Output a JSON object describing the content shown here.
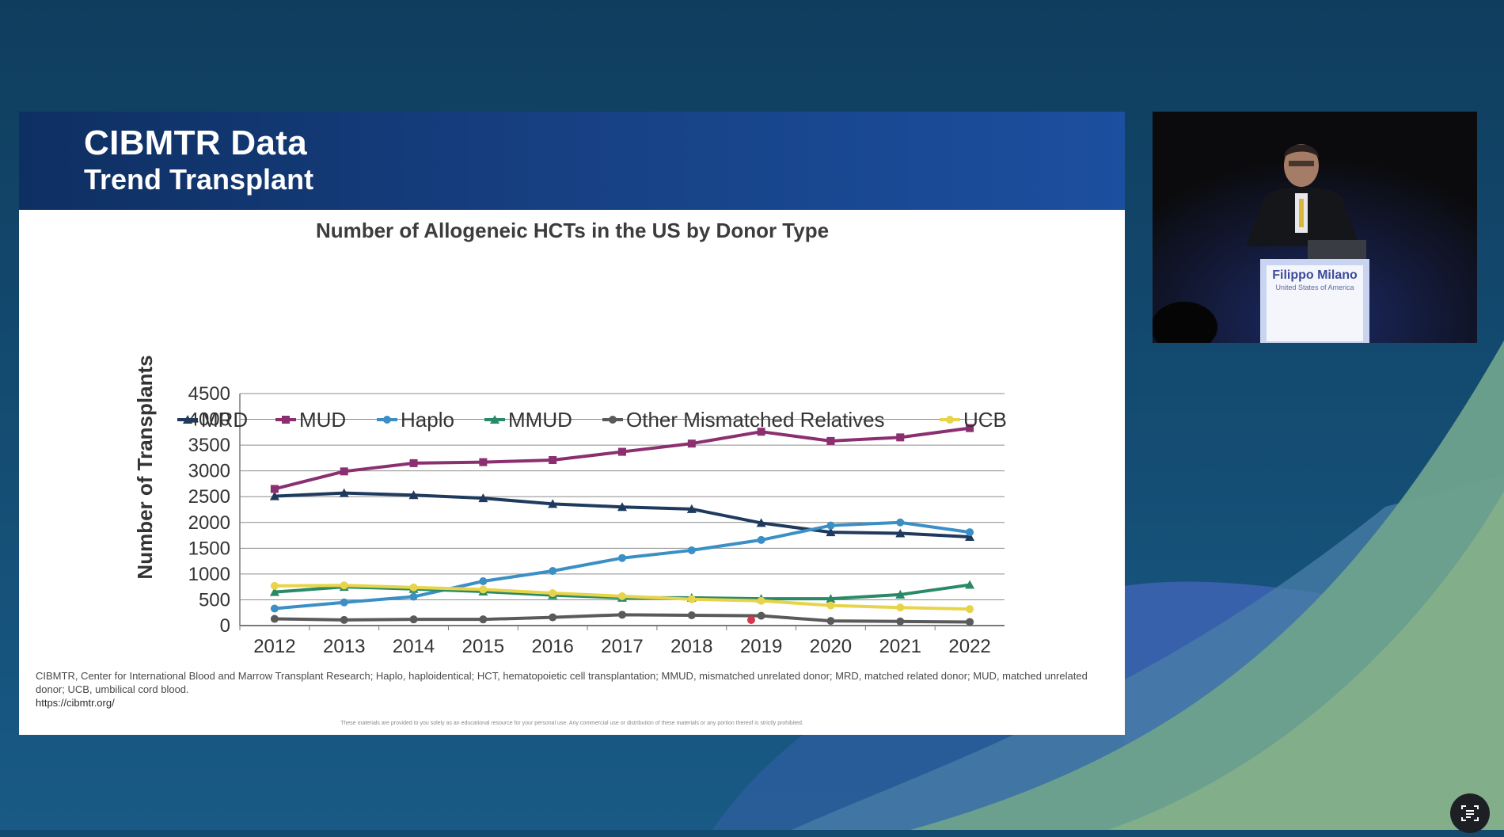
{
  "slide": {
    "title": "CIBMTR Data",
    "subtitle": "Trend Transplant",
    "footnote": "CIBMTR, Center for International Blood and Marrow Transplant Research; Haplo, haploidentical; HCT, hematopoietic cell transplantation; MMUD, mismatched unrelated donor; MRD, matched related donor; MUD, matched unrelated donor; UCB, umbilical cord blood.",
    "footnote_url": "https://cibmtr.org/",
    "disclaimer": "These materials are provided to you solely as an educational resource for your personal use. Any commercial use or distribution of these materials or any portion thereof is strictly prohibited."
  },
  "chart_data": {
    "type": "line",
    "title": "Number of Allogeneic HCTs in the US by Donor Type",
    "xlabel": "",
    "ylabel": "Number of Transplants",
    "ylim": [
      0,
      4500
    ],
    "yticks": [
      "0",
      "500",
      "1000",
      "1500",
      "2000",
      "2500",
      "3000",
      "3500",
      "4000",
      "4500"
    ],
    "grid": true,
    "legend_position": "top",
    "categories": [
      "2012",
      "2013",
      "2014",
      "2015",
      "2016",
      "2017",
      "2018",
      "2019",
      "2020",
      "2021",
      "2022"
    ],
    "series": [
      {
        "name": "MRD",
        "color": "#1f3a5c",
        "marker": "triangle",
        "values": [
          2510,
          2570,
          2530,
          2470,
          2360,
          2300,
          2260,
          1990,
          1810,
          1790,
          1720
        ]
      },
      {
        "name": "MUD",
        "color": "#8b2f70",
        "marker": "square",
        "values": [
          2650,
          2990,
          3150,
          3170,
          3210,
          3370,
          3530,
          3760,
          3580,
          3650,
          3830
        ]
      },
      {
        "name": "Haplo",
        "color": "#3b8fc4",
        "marker": "circle",
        "values": [
          330,
          450,
          560,
          860,
          1060,
          1310,
          1460,
          1660,
          1940,
          2000,
          1810
        ]
      },
      {
        "name": "MMUD",
        "color": "#2a8a66",
        "marker": "triangle",
        "values": [
          650,
          750,
          710,
          660,
          590,
          540,
          540,
          520,
          520,
          600,
          790
        ]
      },
      {
        "name": "Other Mismatched Relatives",
        "color": "#5a5a5a",
        "marker": "circle",
        "values": [
          130,
          110,
          120,
          120,
          160,
          210,
          200,
          190,
          90,
          80,
          70
        ]
      },
      {
        "name": "UCB",
        "color": "#e8d44a",
        "marker": "circle",
        "values": [
          770,
          780,
          740,
          700,
          630,
          570,
          510,
          480,
          390,
          350,
          320
        ]
      }
    ]
  },
  "video": {
    "speaker_name": "Filippo Milano",
    "speaker_country": "United States of America"
  },
  "controls": {
    "screen_icon": "screen-capture-icon"
  }
}
